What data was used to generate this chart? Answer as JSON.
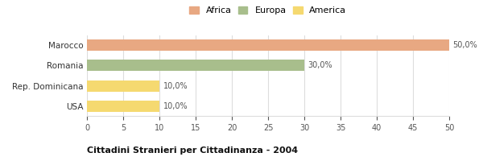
{
  "categories": [
    "Marocco",
    "Romania",
    "Rep. Dominicana",
    "USA"
  ],
  "values": [
    50.0,
    30.0,
    10.0,
    10.0
  ],
  "colors": [
    "#E8A882",
    "#A8BE8C",
    "#F5D970",
    "#F5D970"
  ],
  "legend": [
    {
      "label": "Africa",
      "color": "#E8A882"
    },
    {
      "label": "Europa",
      "color": "#A8BE8C"
    },
    {
      "label": "America",
      "color": "#F5D970"
    }
  ],
  "xlim": [
    0,
    50
  ],
  "xticks": [
    0,
    5,
    10,
    15,
    20,
    25,
    30,
    35,
    40,
    45,
    50
  ],
  "title": "Cittadini Stranieri per Cittadinanza - 2004",
  "bg_color": "#ffffff",
  "grid_color": "#dddddd",
  "bar_labels": [
    "50,0%",
    "30,0%",
    "10,0%",
    "10,0%"
  ]
}
